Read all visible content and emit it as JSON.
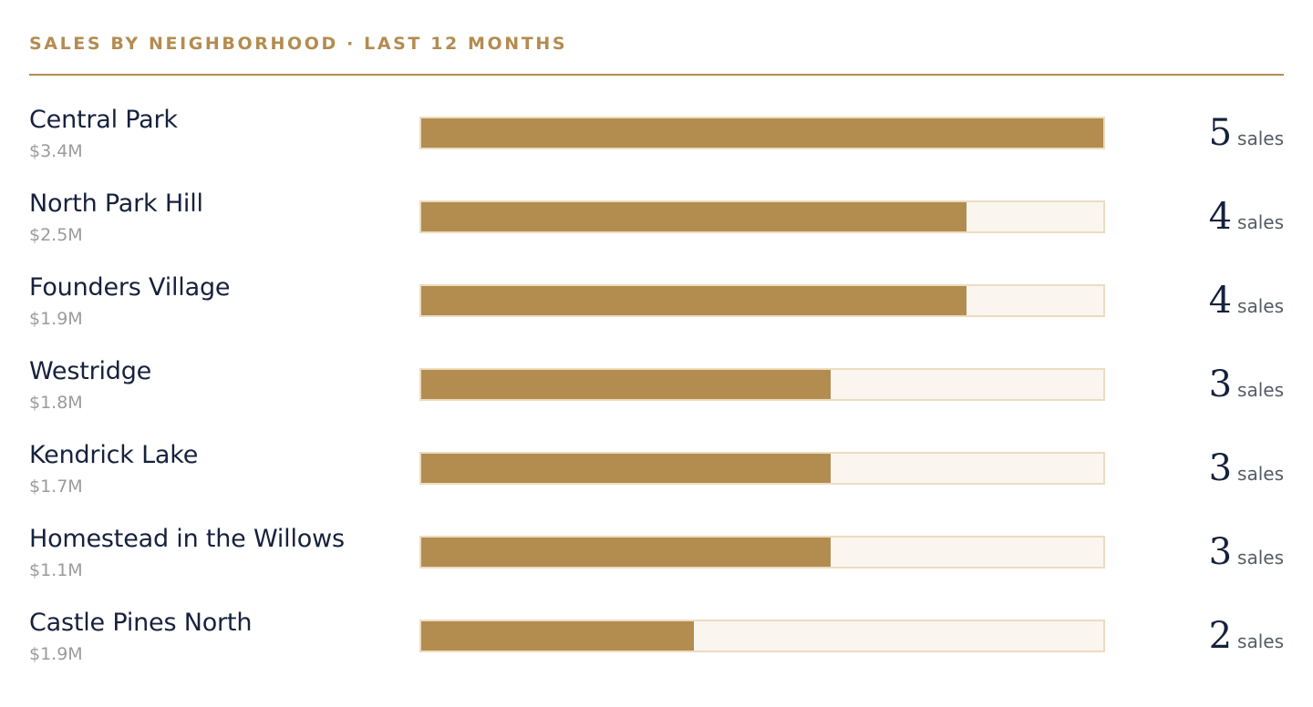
{
  "panel": {
    "title": "SALES BY NEIGHBORHOOD · LAST 12 MONTHS"
  },
  "colors": {
    "accent": "#b38c50",
    "track": "#faf6ef",
    "track_border": "#ecdcc0",
    "name_text": "#16213d",
    "volume_text": "#9b9b9b"
  },
  "chart_data": {
    "type": "bar",
    "orientation": "horizontal",
    "title": "SALES BY NEIGHBORHOOD · LAST 12 MONTHS",
    "categories": [
      "Central Park",
      "North Park Hill",
      "Founders Village",
      "Westridge",
      "Kendrick Lake",
      "Homestead in the Willows",
      "Castle Pines North"
    ],
    "values": [
      5,
      4,
      4,
      3,
      3,
      3,
      2
    ],
    "xlim": [
      0,
      5
    ],
    "unit_label": "sales",
    "volumes": [
      "$3.4M",
      "$2.5M",
      "$1.9M",
      "$1.8M",
      "$1.7M",
      "$1.1M",
      "$1.9M"
    ],
    "grid": false
  },
  "rows": [
    {
      "name": "Central Park",
      "volume": "$3.4M",
      "count": "5",
      "unit": "sales"
    },
    {
      "name": "North Park Hill",
      "volume": "$2.5M",
      "count": "4",
      "unit": "sales"
    },
    {
      "name": "Founders Village",
      "volume": "$1.9M",
      "count": "4",
      "unit": "sales"
    },
    {
      "name": "Westridge",
      "volume": "$1.8M",
      "count": "3",
      "unit": "sales"
    },
    {
      "name": "Kendrick Lake",
      "volume": "$1.7M",
      "count": "3",
      "unit": "sales"
    },
    {
      "name": "Homestead in the Willows",
      "volume": "$1.1M",
      "count": "3",
      "unit": "sales"
    },
    {
      "name": "Castle Pines North",
      "volume": "$1.9M",
      "count": "2",
      "unit": "sales"
    }
  ]
}
